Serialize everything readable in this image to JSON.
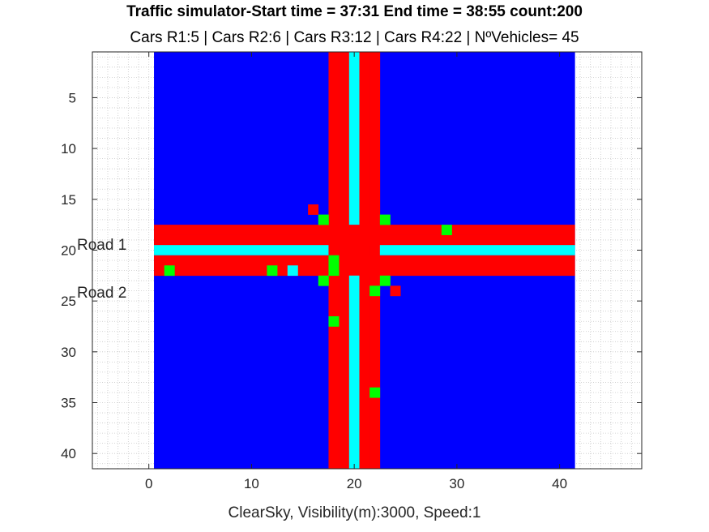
{
  "chart_data": {
    "type": "heatmap",
    "title": "Traffic simulator-Start time = 37:31 End time = 38:55 count:200",
    "subtitle": "Cars R1:5 |  Cars R2:6 |  Cars R3:12 | Cars R4:22 | NºVehicles= 45",
    "xlabel": "ClearSky, Visibility(m):3000, Speed:1",
    "ylabel": "",
    "xlim": [
      -5.5,
      48
    ],
    "ylim": [
      41.5,
      0.5
    ],
    "xticks": [
      0,
      10,
      20,
      30,
      40
    ],
    "yticks": [
      5,
      10,
      15,
      20,
      25,
      30,
      35,
      40
    ],
    "grid": "minor dotted",
    "grid_extent": [
      1,
      41
    ],
    "colors": {
      "background": "#0000FF",
      "road": "#FF0000",
      "lane_divider": "#00FFFF",
      "vehicle_green": "#00FF00",
      "vehicle_red": "#FF0000",
      "vehicle_cyan": "#00FFFF"
    },
    "road_columns": [
      18,
      19,
      21,
      22
    ],
    "divider_column": 20,
    "road_rows": [
      18,
      19,
      21,
      22
    ],
    "divider_row": 20,
    "road_labels": [
      {
        "text": "Road 1",
        "y": 19.4
      },
      {
        "text": "Road 2",
        "y": 24.1
      }
    ],
    "vehicles": [
      {
        "x": 16,
        "y": 16,
        "color": "red"
      },
      {
        "x": 17,
        "y": 17,
        "color": "green"
      },
      {
        "x": 23,
        "y": 17,
        "color": "green"
      },
      {
        "x": 29,
        "y": 18,
        "color": "green"
      },
      {
        "x": 18,
        "y": 21,
        "color": "green"
      },
      {
        "x": 2,
        "y": 22,
        "color": "green"
      },
      {
        "x": 12,
        "y": 22,
        "color": "green"
      },
      {
        "x": 14,
        "y": 22,
        "color": "cyan"
      },
      {
        "x": 18,
        "y": 22,
        "color": "green"
      },
      {
        "x": 17,
        "y": 23,
        "color": "green"
      },
      {
        "x": 23,
        "y": 23,
        "color": "green"
      },
      {
        "x": 22,
        "y": 24,
        "color": "green"
      },
      {
        "x": 24,
        "y": 24,
        "color": "red"
      },
      {
        "x": 18,
        "y": 27,
        "color": "green"
      },
      {
        "x": 22,
        "y": 34,
        "color": "green"
      }
    ]
  }
}
